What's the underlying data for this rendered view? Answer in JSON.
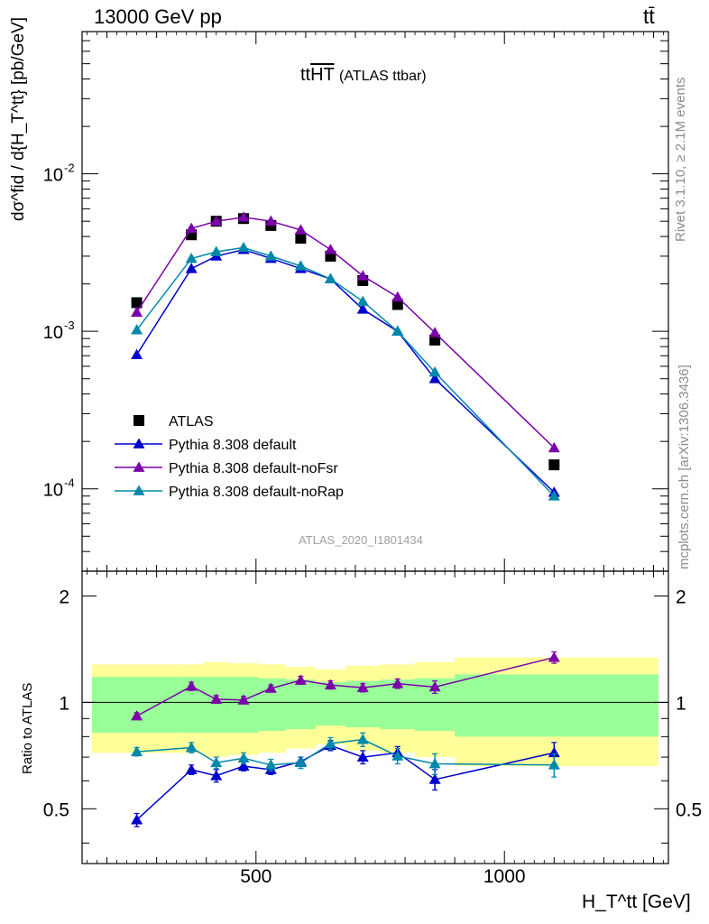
{
  "header": {
    "energy_label": "13000 GeV pp",
    "process_label": "tt̄"
  },
  "side_labels": {
    "rivet": "Rivet 3.1.10, ≥ 2.1M events",
    "mcplots": "mcplots.cern.ch [arXiv:1306.3436]"
  },
  "plot_title": {
    "main": "tt",
    "overline": "HT",
    "sub": "(ATLAS ttbar)"
  },
  "analysis_tag": "ATLAS_2020_I1801434",
  "y_axis_label": "dσ^fid / d{H_T^tt} [pb/GeV]",
  "x_axis_label": "H_T^tt [GeV]",
  "ratio_axis_label": "Ratio to ATLAS",
  "colors": {
    "data": "#000000",
    "default": "#0000cc",
    "noFsr": "#7b00aa",
    "noRap": "#0088aa",
    "band_inner": "#99ff99",
    "band_outer": "#ffff99"
  },
  "chart_data": {
    "type": "scatter",
    "x_range": [
      150,
      1330
    ],
    "main_ylog": true,
    "main_ylim": [
      3e-05,
      0.08
    ],
    "main_y_ticks": [
      "10^{-4}",
      "10^{-3}",
      "10^{-2}"
    ],
    "ratio_ylim": [
      0.35,
      2.35
    ],
    "ratio_y_ticks": [
      "0.5",
      "1",
      "2"
    ],
    "x_ticks": [
      "500",
      "1000"
    ],
    "x": [
      260,
      370,
      420,
      475,
      530,
      590,
      650,
      715,
      785,
      860,
      1100
    ],
    "xedges": [
      170,
      350,
      395,
      445,
      505,
      560,
      620,
      680,
      750,
      820,
      900,
      1310
    ],
    "band_inner": [
      0.18,
      0.18,
      0.18,
      0.18,
      0.17,
      0.16,
      0.14,
      0.15,
      0.16,
      0.17,
      0.2
    ],
    "band_outer": [
      0.28,
      0.28,
      0.3,
      0.29,
      0.28,
      0.26,
      0.24,
      0.27,
      0.28,
      0.3,
      0.34
    ],
    "series": [
      {
        "name": "ATLAS",
        "key": "data",
        "marker": "square",
        "values": [
          0.00152,
          0.0041,
          0.005,
          0.0052,
          0.0047,
          0.0039,
          0.003,
          0.0021,
          0.00148,
          0.00088,
          0.000142
        ]
      },
      {
        "name": "Pythia 8.308 default",
        "key": "default",
        "marker": "triangle",
        "values": [
          0.00071,
          0.0025,
          0.003,
          0.0033,
          0.0029,
          0.0025,
          0.00215,
          0.00138,
          0.001,
          0.0005,
          9.5e-05
        ],
        "ratio": [
          0.465,
          0.645,
          0.62,
          0.66,
          0.645,
          0.68,
          0.755,
          0.7,
          0.72,
          0.605,
          0.72
        ],
        "ratio_err": [
          0.02,
          0.02,
          0.025,
          0.02,
          0.02,
          0.02,
          0.025,
          0.03,
          0.03,
          0.04,
          0.05
        ]
      },
      {
        "name": "Pythia 8.308 default-noFsr",
        "key": "noFsr",
        "marker": "triangle",
        "values": [
          0.00132,
          0.0045,
          0.005,
          0.0053,
          0.005,
          0.0044,
          0.0033,
          0.00225,
          0.00165,
          0.00098,
          0.000182
        ],
        "ratio": [
          0.915,
          1.11,
          1.02,
          1.015,
          1.095,
          1.155,
          1.12,
          1.1,
          1.13,
          1.105,
          1.34
        ],
        "ratio_err": [
          0.02,
          0.03,
          0.025,
          0.025,
          0.025,
          0.03,
          0.03,
          0.03,
          0.035,
          0.045,
          0.05
        ]
      },
      {
        "name": "Pythia 8.308 default-noRap",
        "key": "noRap",
        "marker": "triangle",
        "values": [
          0.00102,
          0.0029,
          0.0032,
          0.0034,
          0.003,
          0.0026,
          0.00215,
          0.00155,
          0.001,
          0.00055,
          9e-05
        ],
        "ratio": [
          0.725,
          0.745,
          0.675,
          0.695,
          0.665,
          0.675,
          0.765,
          0.785,
          0.705,
          0.67,
          0.665
        ],
        "ratio_err": [
          0.02,
          0.025,
          0.025,
          0.025,
          0.025,
          0.025,
          0.03,
          0.035,
          0.035,
          0.045,
          0.05
        ]
      }
    ]
  }
}
